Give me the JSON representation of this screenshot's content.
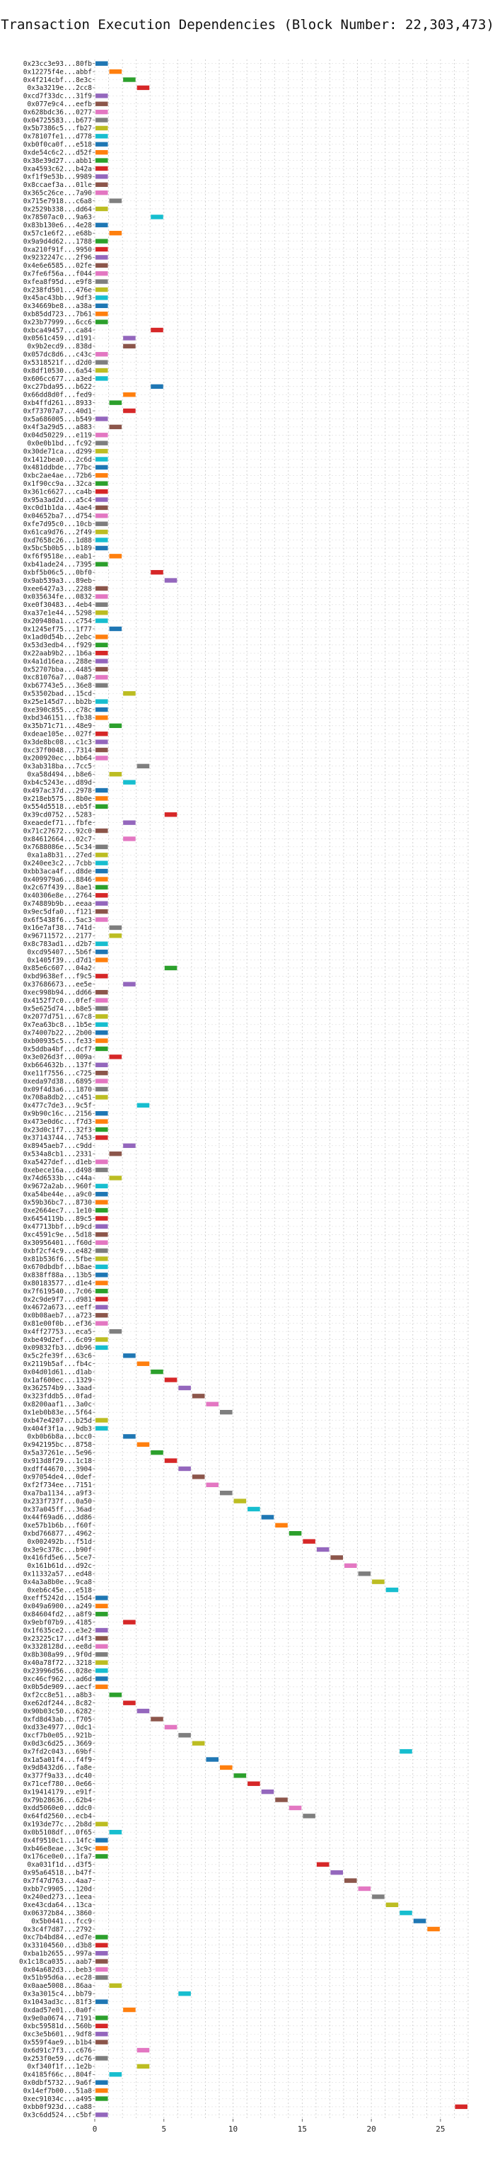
{
  "chart_data": {
    "type": "gantt",
    "title": "Transaction Execution Dependencies (Block Number: 22,303,473)",
    "xlabel": "",
    "ylabel": "",
    "xlim": [
      0,
      27
    ],
    "xticks": [
      0,
      5,
      10,
      15,
      20,
      25
    ],
    "grid": true,
    "palette": [
      "#1f77b4",
      "#ff7f0e",
      "#2ca02c",
      "#d62728",
      "#9467bd",
      "#8c564b",
      "#e377c2",
      "#7f7f7f",
      "#bcbd22",
      "#17becf"
    ],
    "transactions": [
      {
        "label": "0x23cc3e93...80fb",
        "start": 0
      },
      {
        "label": "0x12275f4e...abbf",
        "start": 1
      },
      {
        "label": "0x4f214cbf...8e3c",
        "start": 2
      },
      {
        "label": "0x3a3219e...2cc8",
        "start": 3
      },
      {
        "label": "0xcd7f33dc...31f9",
        "start": 0
      },
      {
        "label": "0x077e9c4...eefb",
        "start": 0
      },
      {
        "label": "0x628bdc36...0277",
        "start": 0
      },
      {
        "label": "0x04725583...b677",
        "start": 0
      },
      {
        "label": "0x5b7386c5...fb27",
        "start": 0
      },
      {
        "label": "0x78107fe1...d778",
        "start": 0
      },
      {
        "label": "0xb0f0ca0f...e518",
        "start": 0
      },
      {
        "label": "0xde54c6c2...d52f",
        "start": 0
      },
      {
        "label": "0x38e39d27...abb1",
        "start": 0
      },
      {
        "label": "0xa4593c62...b42a",
        "start": 0
      },
      {
        "label": "0xf1f9e53b...9989",
        "start": 0
      },
      {
        "label": "0x8ccaef3a...01le",
        "start": 0
      },
      {
        "label": "0x365c26ce...7a90",
        "start": 0
      },
      {
        "label": "0x715e7918...c6a8",
        "start": 1
      },
      {
        "label": "0x2529b338...dd64",
        "start": 0
      },
      {
        "label": "0x78507ac0...9a63",
        "start": 4
      },
      {
        "label": "0x83b130e6...4e28",
        "start": 0
      },
      {
        "label": "0x57c1e6f2...e68b",
        "start": 1
      },
      {
        "label": "0x9a9d4d62...1788",
        "start": 0
      },
      {
        "label": "0xa210f91f...9950",
        "start": 0
      },
      {
        "label": "0x9232247c...2f96",
        "start": 0
      },
      {
        "label": "0x4e6e6585...02fe",
        "start": 0
      },
      {
        "label": "0x7fe6f56a...f044",
        "start": 0
      },
      {
        "label": "0xfea8f95d...e9f8",
        "start": 0
      },
      {
        "label": "0x238fd501...476e",
        "start": 0
      },
      {
        "label": "0x45ac43bb...9df3",
        "start": 0
      },
      {
        "label": "0x34669be8...a38a",
        "start": 0
      },
      {
        "label": "0xb85dd723...7b61",
        "start": 0
      },
      {
        "label": "0x23b77999...6cc6",
        "start": 0
      },
      {
        "label": "0xbca49457...ca84",
        "start": 4
      },
      {
        "label": "0x0561c459...d191",
        "start": 2
      },
      {
        "label": "0x9b2ecd9...838d",
        "start": 2
      },
      {
        "label": "0x057dc8d6...c43c",
        "start": 0
      },
      {
        "label": "0x5318521f...d2d0",
        "start": 0
      },
      {
        "label": "0x8df10530...6a54",
        "start": 0
      },
      {
        "label": "0x606cc677...a3ed",
        "start": 0
      },
      {
        "label": "0xc27bda95...b622",
        "start": 4
      },
      {
        "label": "0x66dd8d0f...fed9",
        "start": 2
      },
      {
        "label": "0xb4ffd261...8933",
        "start": 1
      },
      {
        "label": "0xf73707a7...40d1",
        "start": 2
      },
      {
        "label": "0x5a686005...b549",
        "start": 0
      },
      {
        "label": "0x4f3a29d5...a883",
        "start": 1
      },
      {
        "label": "0x04d50229...e119",
        "start": 0
      },
      {
        "label": "0x0e0b1bd...fc92",
        "start": 0
      },
      {
        "label": "0x30de71ca...d299",
        "start": 0
      },
      {
        "label": "0x1412bea0...2c6d",
        "start": 0
      },
      {
        "label": "0x481ddbde...77bc",
        "start": 0
      },
      {
        "label": "0xbc2ae4ae...72b6",
        "start": 0
      },
      {
        "label": "0x1f90cc9a...32ca",
        "start": 0
      },
      {
        "label": "0x361c6627...ca4b",
        "start": 0
      },
      {
        "label": "0x95a3ad2d...a5c4",
        "start": 0
      },
      {
        "label": "0xc0d1b1da...4ae4",
        "start": 0
      },
      {
        "label": "0x04652ba7...d754",
        "start": 0
      },
      {
        "label": "0xfe7d95c0...10cb",
        "start": 0
      },
      {
        "label": "0x61ca9d76...2f49",
        "start": 0
      },
      {
        "label": "0xd7658c26...1d88",
        "start": 0
      },
      {
        "label": "0x5bc5b0b5...b189",
        "start": 0
      },
      {
        "label": "0xf6f9518e...eab1",
        "start": 1
      },
      {
        "label": "0xb41ade24...7395",
        "start": 0
      },
      {
        "label": "0xbf5b06c5...0bf0",
        "start": 4
      },
      {
        "label": "0x9ab539a3...89eb",
        "start": 5
      },
      {
        "label": "0xee6427a3...2288",
        "start": 0
      },
      {
        "label": "0x035634fe...0832",
        "start": 0
      },
      {
        "label": "0xe0f30483...4eb4",
        "start": 0
      },
      {
        "label": "0xa37e1e44...5298",
        "start": 0
      },
      {
        "label": "0x209480a1...c754",
        "start": 0
      },
      {
        "label": "0x1245ef75...1f77",
        "start": 1
      },
      {
        "label": "0x1ad0d54b...2ebc",
        "start": 0
      },
      {
        "label": "0x53d3edb4...f929",
        "start": 0
      },
      {
        "label": "0x22aab9b2...1b6a",
        "start": 0
      },
      {
        "label": "0x4a1d16ea...288e",
        "start": 0
      },
      {
        "label": "0x52707bba...4485",
        "start": 0
      },
      {
        "label": "0xc81076a7...0a87",
        "start": 0
      },
      {
        "label": "0xb67743e5...36e8",
        "start": 0
      },
      {
        "label": "0x53502bad...15cd",
        "start": 2
      },
      {
        "label": "0x25e145d7...bb2b",
        "start": 0
      },
      {
        "label": "0xe390c855...c78c",
        "start": 0
      },
      {
        "label": "0xbd346151...fb38",
        "start": 0
      },
      {
        "label": "0x35b71c71...48e9",
        "start": 1
      },
      {
        "label": "0xdeae105e...027f",
        "start": 0
      },
      {
        "label": "0x3de8bc08...c1c3",
        "start": 0
      },
      {
        "label": "0xc37f0048...7314",
        "start": 0
      },
      {
        "label": "0x200920ec...bb64",
        "start": 0
      },
      {
        "label": "0x3ab318ba...7cc5",
        "start": 3
      },
      {
        "label": "0xa58d494...b8e6",
        "start": 1
      },
      {
        "label": "0xb4c5243e...d89d",
        "start": 2
      },
      {
        "label": "0x497ac37d...2978",
        "start": 0
      },
      {
        "label": "0x218eb575...8b0e",
        "start": 0
      },
      {
        "label": "0x554d5518...eb5f",
        "start": 0
      },
      {
        "label": "0x39cd0752...5283",
        "start": 5
      },
      {
        "label": "0xeaedef71...fbfe",
        "start": 2
      },
      {
        "label": "0x71c27672...92c0",
        "start": 0
      },
      {
        "label": "0x84612664...02c7",
        "start": 2
      },
      {
        "label": "0x7688086e...5c34",
        "start": 0
      },
      {
        "label": "0xa1a8b31...27ed",
        "start": 0
      },
      {
        "label": "0x240ee3c2...7cbb",
        "start": 0
      },
      {
        "label": "0xbb3aca4f...d8de",
        "start": 0
      },
      {
        "label": "0x409979a6...8846",
        "start": 0
      },
      {
        "label": "0x2c67f439...8ae1",
        "start": 0
      },
      {
        "label": "0x40306e8e...2764",
        "start": 0
      },
      {
        "label": "0x74889b9b...eeaa",
        "start": 0
      },
      {
        "label": "0x9ec5dfa0...f121",
        "start": 0
      },
      {
        "label": "0x6f5438f6...5ac3",
        "start": 0
      },
      {
        "label": "0x16e7af38...741d",
        "start": 1
      },
      {
        "label": "0x96711572...2177",
        "start": 1
      },
      {
        "label": "0x8c783ad1...d2b7",
        "start": 0
      },
      {
        "label": "0xcd95407...5b6f",
        "start": 0
      },
      {
        "label": "0x1405f39...d7d1",
        "start": 0
      },
      {
        "label": "0x85e6c607...04a2",
        "start": 5
      },
      {
        "label": "0xbd9638ef...f9c5",
        "start": 0
      },
      {
        "label": "0x37686673...ee5e",
        "start": 2
      },
      {
        "label": "0xec998b94...dd66",
        "start": 0
      },
      {
        "label": "0x4152f7c0...0fef",
        "start": 0
      },
      {
        "label": "0x5e625d74...b8e5",
        "start": 0
      },
      {
        "label": "0x2077d751...67c8",
        "start": 0
      },
      {
        "label": "0x7ea63bc8...1b5e",
        "start": 0
      },
      {
        "label": "0x74007b22...2b00",
        "start": 0
      },
      {
        "label": "0xb00935c5...fe33",
        "start": 0
      },
      {
        "label": "0x5ddba4bf...dcf7",
        "start": 0
      },
      {
        "label": "0x3e026d3f...009a",
        "start": 1
      },
      {
        "label": "0xb664632b...137f",
        "start": 0
      },
      {
        "label": "0xe11f7556...c725",
        "start": 0
      },
      {
        "label": "0xeda97d38...6895",
        "start": 0
      },
      {
        "label": "0x09f4d3a6...1870",
        "start": 0
      },
      {
        "label": "0x708a8db2...c451",
        "start": 0
      },
      {
        "label": "0x477c7de3...9c5f",
        "start": 3
      },
      {
        "label": "0x9b90c16c...2156",
        "start": 0
      },
      {
        "label": "0x473e0d6c...f7d3",
        "start": 0
      },
      {
        "label": "0x23d0c1f7...32f3",
        "start": 0
      },
      {
        "label": "0x37143744...7453",
        "start": 0
      },
      {
        "label": "0x8945aeb7...c9dd",
        "start": 2
      },
      {
        "label": "0x534a8cb1...2331",
        "start": 1
      },
      {
        "label": "0xa5427def...d1eb",
        "start": 0
      },
      {
        "label": "0xebece16a...d498",
        "start": 0
      },
      {
        "label": "0x74d6533b...c44a",
        "start": 1
      },
      {
        "label": "0x9672a2ab...960f",
        "start": 0
      },
      {
        "label": "0xa54be44e...a9c0",
        "start": 0
      },
      {
        "label": "0x59b36bc7...8730",
        "start": 0
      },
      {
        "label": "0xe2664ec7...1e10",
        "start": 0
      },
      {
        "label": "0x6454119b...89c5",
        "start": 0
      },
      {
        "label": "0x47713bbf...b9cd",
        "start": 0
      },
      {
        "label": "0xc4591c9e...5d18",
        "start": 0
      },
      {
        "label": "0x30956401...f60d",
        "start": 0
      },
      {
        "label": "0xbf2cf4c9...e482",
        "start": 0
      },
      {
        "label": "0x81b536f6...5fbe",
        "start": 0
      },
      {
        "label": "0x670dbdbf...b8ae",
        "start": 0
      },
      {
        "label": "0x838ff88a...13b5",
        "start": 0
      },
      {
        "label": "0x80183577...d1e4",
        "start": 0
      },
      {
        "label": "0x7f619540...7c06",
        "start": 0
      },
      {
        "label": "0x2c9de9f7...d981",
        "start": 0
      },
      {
        "label": "0x4672a673...eeff",
        "start": 0
      },
      {
        "label": "0x0b08aeb7...a723",
        "start": 0
      },
      {
        "label": "0x81e00f0b...ef36",
        "start": 0
      },
      {
        "label": "0x4ff27753...eca5",
        "start": 1
      },
      {
        "label": "0xbe49d2ef...6c09",
        "start": 0
      },
      {
        "label": "0x09832fb3...db96",
        "start": 0
      },
      {
        "label": "0x5c2fe39f...63c6",
        "start": 2
      },
      {
        "label": "0x2119b5af...fb4c",
        "start": 3
      },
      {
        "label": "0x04d01d61...d1ab",
        "start": 4
      },
      {
        "label": "0x1af600ec...1329",
        "start": 5
      },
      {
        "label": "0x362574b9...3aad",
        "start": 6
      },
      {
        "label": "0x323fddb5...0fad",
        "start": 7
      },
      {
        "label": "0x8200aaf1...3a0c",
        "start": 8
      },
      {
        "label": "0x1eb0b83e...5f64",
        "start": 9
      },
      {
        "label": "0xb47e4207...b25d",
        "start": 0
      },
      {
        "label": "0x404f3f1a...9db3",
        "start": 0
      },
      {
        "label": "0xb0b6b8a...bcc0",
        "start": 2
      },
      {
        "label": "0x942195bc...8758",
        "start": 3
      },
      {
        "label": "0x5a37261e...5e96",
        "start": 4
      },
      {
        "label": "0x913d8f29...1c18",
        "start": 5
      },
      {
        "label": "0xdff44670...3904",
        "start": 6
      },
      {
        "label": "0x97054de4...0def",
        "start": 7
      },
      {
        "label": "0xf2f734ee...7151",
        "start": 8
      },
      {
        "label": "0xa7ba1134...a9f3",
        "start": 9
      },
      {
        "label": "0x233f737f...0a50",
        "start": 10
      },
      {
        "label": "0x37a045ff...36ad",
        "start": 11
      },
      {
        "label": "0x44f69ad6...dd86",
        "start": 12
      },
      {
        "label": "0xe57b1b6b...f60f",
        "start": 13
      },
      {
        "label": "0xbd766877...4962",
        "start": 14
      },
      {
        "label": "0x002492b...f51d",
        "start": 15
      },
      {
        "label": "0x3e9c378c...b90f",
        "start": 16
      },
      {
        "label": "0x416fd5e6...5ce7",
        "start": 17
      },
      {
        "label": "0x161b61d...d92c",
        "start": 18
      },
      {
        "label": "0x11332a57...ed48",
        "start": 19
      },
      {
        "label": "0x4a3a8b0e...9ca8",
        "start": 20
      },
      {
        "label": "0xeb6c45e...e518",
        "start": 21
      },
      {
        "label": "0xeff5242d...15d4",
        "start": 0
      },
      {
        "label": "0x049a6900...a249",
        "start": 0
      },
      {
        "label": "0x84604fd2...a8f9",
        "start": 0
      },
      {
        "label": "0x9ebf07b9...4185",
        "start": 2
      },
      {
        "label": "0x1f635ce2...e3e2",
        "start": 0
      },
      {
        "label": "0x23225c17...d4f3",
        "start": 0
      },
      {
        "label": "0x3328128d...ee8d",
        "start": 0
      },
      {
        "label": "0x8b308a99...9f0d",
        "start": 0
      },
      {
        "label": "0x40a78f72...3218",
        "start": 0
      },
      {
        "label": "0x23996d56...028e",
        "start": 0
      },
      {
        "label": "0xc46cf962...ad6d",
        "start": 0
      },
      {
        "label": "0x0b5de909...aecf",
        "start": 0
      },
      {
        "label": "0xf2cc8e51...a8b3",
        "start": 1
      },
      {
        "label": "0xe62df244...8c82",
        "start": 2
      },
      {
        "label": "0x90b03c50...6282",
        "start": 3
      },
      {
        "label": "0xfd8d43ab...f705",
        "start": 4
      },
      {
        "label": "0xd33e4977...0dc1",
        "start": 5
      },
      {
        "label": "0xcf7b0e05...921b",
        "start": 6
      },
      {
        "label": "0x0d3c6d25...3669",
        "start": 7
      },
      {
        "label": "0x7fd2c043...69bf",
        "start": 22
      },
      {
        "label": "0x1a5a01f4...f4f9",
        "start": 8
      },
      {
        "label": "0x9d8432d6...fa8e",
        "start": 9
      },
      {
        "label": "0x377f9a33...dc40",
        "start": 10
      },
      {
        "label": "0x71cef780...0e66",
        "start": 11
      },
      {
        "label": "0x19414179...e91f",
        "start": 12
      },
      {
        "label": "0x79b28636...62b4",
        "start": 13
      },
      {
        "label": "0xdd5060e0...ddc0",
        "start": 14
      },
      {
        "label": "0x64fd2560...ecb4",
        "start": 15
      },
      {
        "label": "0x193de77c...2b8d",
        "start": 0
      },
      {
        "label": "0x0b5108df...0f65",
        "start": 1
      },
      {
        "label": "0x4f9510c1...14fc",
        "start": 0
      },
      {
        "label": "0xb46e8eae...3c9c",
        "start": 0
      },
      {
        "label": "0x176ce0e0...1fa7",
        "start": 0
      },
      {
        "label": "0xa031f1d...d3f5",
        "start": 16
      },
      {
        "label": "0x95a64518...b47f",
        "start": 17
      },
      {
        "label": "0x7f47d763...4aa7",
        "start": 18
      },
      {
        "label": "0xbb7c9905...120d",
        "start": 19
      },
      {
        "label": "0x240ed273...1eea",
        "start": 20
      },
      {
        "label": "0xe43cda64...13ca",
        "start": 21
      },
      {
        "label": "0x06372b84...3860",
        "start": 22
      },
      {
        "label": "0x5b0441...fcc9",
        "start": 23
      },
      {
        "label": "0x3c4f7d87...2792",
        "start": 24
      },
      {
        "label": "0xc7b4bd84...ed7e",
        "start": 0
      },
      {
        "label": "0x33104560...d3b8",
        "start": 0
      },
      {
        "label": "0xba1b2655...997a",
        "start": 0
      },
      {
        "label": "0x1c18ca035...aab7",
        "start": 0
      },
      {
        "label": "0x04a682d3...beb3",
        "start": 0
      },
      {
        "label": "0x51b95d6a...ec28",
        "start": 0
      },
      {
        "label": "0x0aae5008...86aa",
        "start": 1
      },
      {
        "label": "0x3a3015c4...bb79",
        "start": 6
      },
      {
        "label": "0x1043ad3c...81f3",
        "start": 0
      },
      {
        "label": "0xdad57e01...0a0f",
        "start": 2
      },
      {
        "label": "0x9e0a0674...7191",
        "start": 0
      },
      {
        "label": "0xbc59581d...560b",
        "start": 0
      },
      {
        "label": "0xc3e5b601...9df8",
        "start": 0
      },
      {
        "label": "0x559f4ae9...b1b4",
        "start": 0
      },
      {
        "label": "0x6d91c7f3...c676",
        "start": 3
      },
      {
        "label": "0x253f0e59...dc76",
        "start": 0
      },
      {
        "label": "0xf340f1f...1e2b",
        "start": 3
      },
      {
        "label": "0x4185f66c...804f",
        "start": 1
      },
      {
        "label": "0x0dbf5732...9a6f",
        "start": 0
      },
      {
        "label": "0x14ef7b00...51a8",
        "start": 0
      },
      {
        "label": "0xec91034c...a495",
        "start": 0
      },
      {
        "label": "0xbb0f923d...ca88",
        "start": 26
      },
      {
        "label": "0x3c6dd524...c5bf",
        "start": 0
      }
    ]
  }
}
